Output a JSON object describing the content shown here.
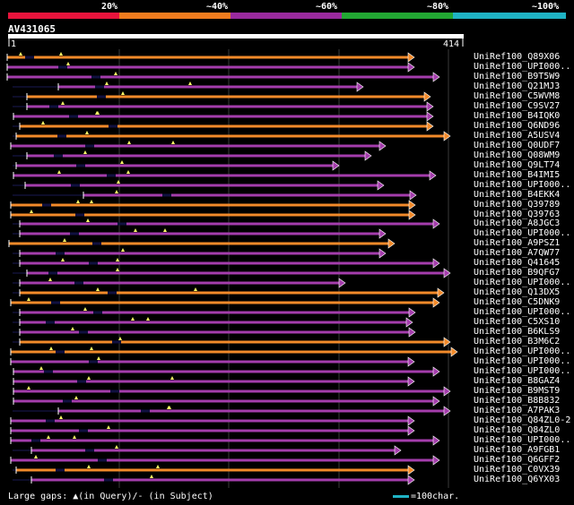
{
  "legend": {
    "labels": [
      "20%",
      "~40%",
      "~60%",
      "~80%",
      "~100%"
    ],
    "colors": [
      "#e8143c",
      "#f07c1e",
      "#9a2a9e",
      "#22a833",
      "#1fb3c4"
    ]
  },
  "query": {
    "name": "AV431065",
    "start": "1",
    "end": "414"
  },
  "hits": [
    {
      "id": "UniRef100_Q89X06",
      "a": 8,
      "b": 462,
      "c": "orange",
      "t": []
    },
    {
      "id": "UniRef100_UPI000..",
      "a": 8,
      "b": 462,
      "c": "purple",
      "t": []
    },
    {
      "id": "UniRef100_B9T5W9",
      "a": 8,
      "b": 490,
      "c": "purple",
      "t": []
    },
    {
      "id": "UniRef100_Q21MJ3",
      "a": 65,
      "b": 405,
      "c": "purple",
      "t": []
    },
    {
      "id": "UniRef100_C5WVM8",
      "a": 30,
      "b": 480,
      "c": "orange",
      "t": []
    },
    {
      "id": "UniRef100_C9SV27",
      "a": 30,
      "b": 483,
      "c": "purple",
      "t": []
    },
    {
      "id": "UniRef100_B4IQK0",
      "a": 15,
      "b": 483,
      "c": "purple",
      "t": []
    },
    {
      "id": "UniRef100_Q6ND96",
      "a": 22,
      "b": 483,
      "c": "orange",
      "t": []
    },
    {
      "id": "UniRef100_A5USV4",
      "a": 18,
      "b": 502,
      "c": "orange",
      "t": []
    },
    {
      "id": "UniRef100_Q0UDF7",
      "a": 12,
      "b": 430,
      "c": "purple",
      "t": []
    },
    {
      "id": "UniRef100_Q08WM9",
      "a": 30,
      "b": 414,
      "c": "purple",
      "t": []
    },
    {
      "id": "UniRef100_Q9LT74",
      "a": 18,
      "b": 378,
      "c": "purple",
      "t": []
    },
    {
      "id": "UniRef100_B4IMI5",
      "a": 15,
      "b": 486,
      "c": "purple",
      "t": []
    },
    {
      "id": "UniRef100_UPI000..",
      "a": 28,
      "b": 428,
      "c": "purple",
      "t": []
    },
    {
      "id": "UniRef100_B4EKK4",
      "a": 93,
      "b": 464,
      "c": "purple",
      "t": []
    },
    {
      "id": "UniRef100_Q39789",
      "a": 12,
      "b": 463,
      "c": "orange",
      "t": []
    },
    {
      "id": "UniRef100_Q39763",
      "a": 12,
      "b": 463,
      "c": "orange",
      "t": []
    },
    {
      "id": "UniRef100_A8JGC3",
      "a": 22,
      "b": 490,
      "c": "purple",
      "t": []
    },
    {
      "id": "UniRef100_UPI000..",
      "a": 22,
      "b": 430,
      "c": "purple",
      "t": []
    },
    {
      "id": "UniRef100_A9PSZ1",
      "a": 10,
      "b": 440,
      "c": "orange",
      "t": []
    },
    {
      "id": "UniRef100_A7QW77",
      "a": 22,
      "b": 430,
      "c": "purple",
      "t": []
    },
    {
      "id": "UniRef100_Q41645",
      "a": 22,
      "b": 490,
      "c": "purple",
      "t": []
    },
    {
      "id": "UniRef100_B9QFG7",
      "a": 30,
      "b": 502,
      "c": "purple",
      "t": []
    },
    {
      "id": "UniRef100_UPI000..",
      "a": 22,
      "b": 385,
      "c": "purple",
      "t": []
    },
    {
      "id": "UniRef100_Q13DX5",
      "a": 22,
      "b": 495,
      "c": "orange",
      "t": []
    },
    {
      "id": "UniRef100_C5DNK9",
      "a": 12,
      "b": 490,
      "c": "orange",
      "t": []
    },
    {
      "id": "UniRef100_UPI000..",
      "a": 22,
      "b": 463,
      "c": "purple",
      "t": []
    },
    {
      "id": "UniRef100_C5XS10",
      "a": 22,
      "b": 460,
      "c": "purple",
      "t": []
    },
    {
      "id": "UniRef100_B6KLS9",
      "a": 22,
      "b": 463,
      "c": "purple",
      "t": []
    },
    {
      "id": "UniRef100_B3M6C2",
      "a": 22,
      "b": 502,
      "c": "orange",
      "t": []
    },
    {
      "id": "UniRef100_UPI000..",
      "a": 12,
      "b": 510,
      "c": "orange",
      "t": []
    },
    {
      "id": "UniRef100_UPI000..",
      "a": 12,
      "b": 462,
      "c": "purple",
      "t": []
    },
    {
      "id": "UniRef100_UPI000..",
      "a": 15,
      "b": 490,
      "c": "purple",
      "t": []
    },
    {
      "id": "UniRef100_B8GAZ4",
      "a": 15,
      "b": 462,
      "c": "purple",
      "t": []
    },
    {
      "id": "UniRef100_B9MST9",
      "a": 15,
      "b": 502,
      "c": "purple",
      "t": []
    },
    {
      "id": "UniRef100_B8B832",
      "a": 15,
      "b": 490,
      "c": "purple",
      "t": []
    },
    {
      "id": "UniRef100_A7PAK3",
      "a": 65,
      "b": 502,
      "c": "purple",
      "t": []
    },
    {
      "id": "UniRef100_Q84ZL0-2",
      "a": 12,
      "b": 462,
      "c": "purple",
      "t": []
    },
    {
      "id": "UniRef100_Q84ZL0",
      "a": 12,
      "b": 462,
      "c": "purple",
      "t": []
    },
    {
      "id": "UniRef100_UPI000..",
      "a": 12,
      "b": 490,
      "c": "purple",
      "t": []
    },
    {
      "id": "UniRef100_A9FGB1",
      "a": 35,
      "b": 447,
      "c": "purple",
      "t": []
    },
    {
      "id": "UniRef100_Q6GFF2",
      "a": 12,
      "b": 490,
      "c": "purple",
      "t": []
    },
    {
      "id": "UniRef100_C0VX39",
      "a": 18,
      "b": 462,
      "c": "orange",
      "t": []
    },
    {
      "id": "UniRef100_Q6YX03",
      "a": 35,
      "b": 462,
      "c": "purple",
      "t": []
    }
  ],
  "footer": {
    "gaps_text": "Large gaps: ▲(in Query)/- (in Subject)",
    "scale_text": "=100char."
  }
}
